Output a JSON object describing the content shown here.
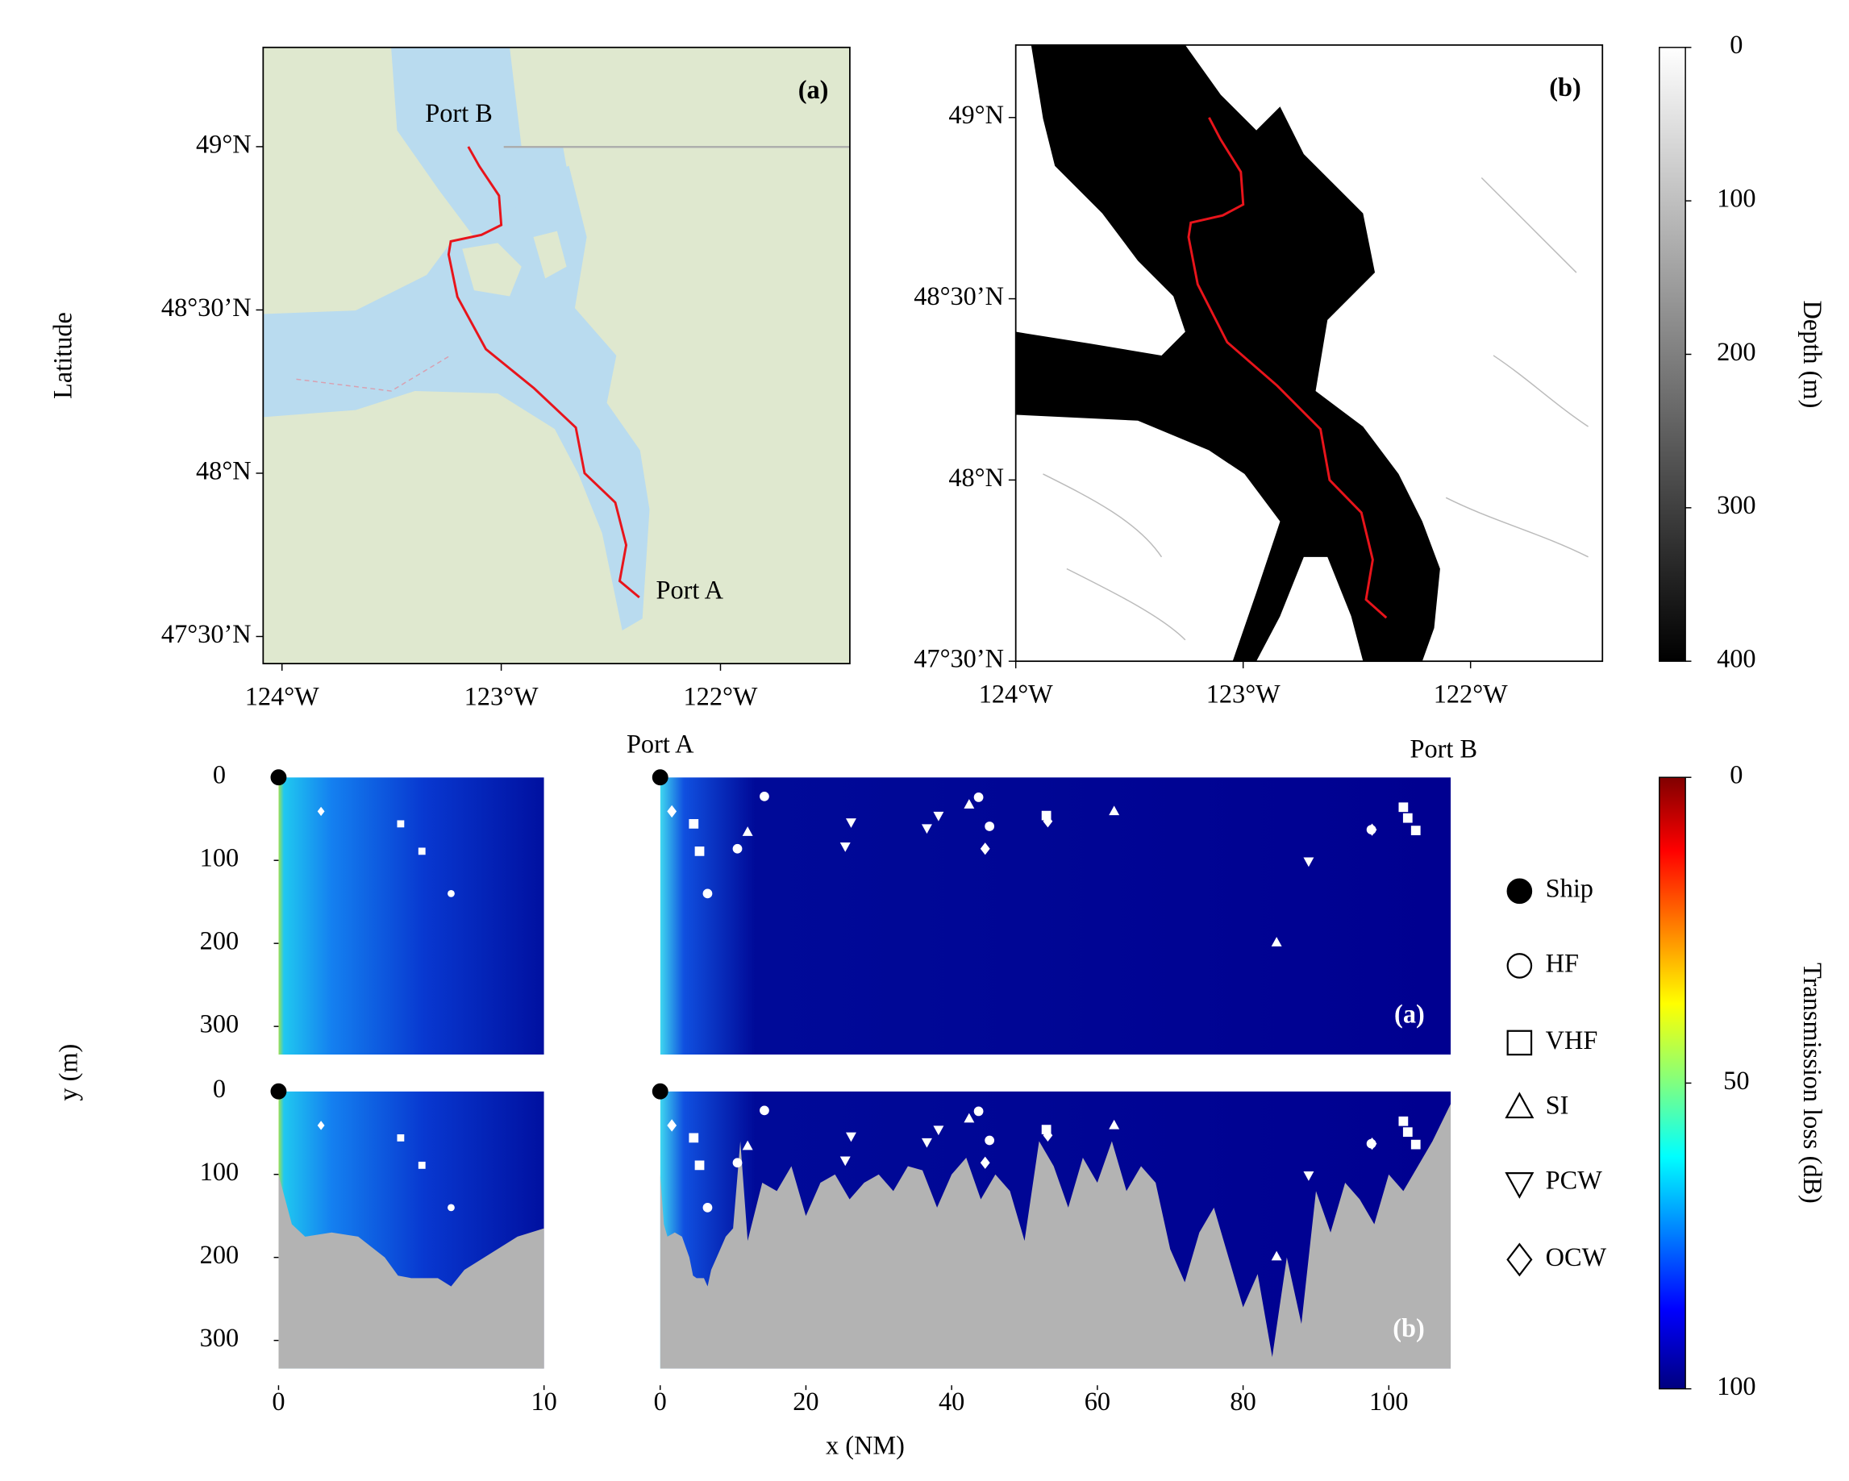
{
  "chart_data": [
    {
      "type": "map",
      "label": "(a)",
      "ylabel": "Latitude",
      "xlim": [
        -124.086,
        -121.41
      ],
      "ylim": [
        47.417,
        49.304
      ],
      "xticks": [
        {
          "value": -124,
          "label": "124°W"
        },
        {
          "value": -123,
          "label": "123°W"
        },
        {
          "value": -122,
          "label": "122°W"
        }
      ],
      "yticks": [
        {
          "value": 47.5,
          "label": "47°30’N"
        },
        {
          "value": 48,
          "label": "48°N"
        },
        {
          "value": 48.5,
          "label": "48°30’N"
        },
        {
          "value": 49,
          "label": "49°N"
        }
      ],
      "route": {
        "color": "#e8141b",
        "x": [
          -123.15,
          -123.1,
          -123.01,
          -123.0,
          -123.09,
          -123.23,
          -123.24,
          -123.2,
          -123.07,
          -122.85,
          -122.66,
          -122.62,
          -122.48,
          -122.43,
          -122.46,
          -122.37
        ],
        "y": [
          49.0,
          48.94,
          48.85,
          48.76,
          48.73,
          48.71,
          48.67,
          48.54,
          48.38,
          48.26,
          48.14,
          48.0,
          47.91,
          47.78,
          47.67,
          47.62
        ]
      },
      "annotations": [
        "Port B",
        "Port A"
      ]
    },
    {
      "type": "map",
      "label": "(b)",
      "xlim": [
        -124,
        -121.42
      ],
      "ylim": [
        47.5,
        49.2
      ],
      "xticks": [
        {
          "value": -124,
          "label": "124°W"
        },
        {
          "value": -123,
          "label": "123°W"
        },
        {
          "value": -122,
          "label": "122°W"
        }
      ],
      "yticks": [
        {
          "value": 47.5,
          "label": "47°30’N"
        },
        {
          "value": 48,
          "label": "48°N"
        },
        {
          "value": 48.5,
          "label": "48°30’N"
        },
        {
          "value": 49,
          "label": "49°N"
        }
      ],
      "route": {
        "color": "#e8141b",
        "x": [
          -123.15,
          -123.1,
          -123.01,
          -123.0,
          -123.09,
          -123.23,
          -123.24,
          -123.2,
          -123.07,
          -122.85,
          -122.66,
          -122.62,
          -122.48,
          -122.43,
          -122.46,
          -122.37
        ],
        "y": [
          49.0,
          48.94,
          48.85,
          48.76,
          48.73,
          48.71,
          48.67,
          48.54,
          48.38,
          48.26,
          48.14,
          48.0,
          47.91,
          47.78,
          47.67,
          47.62
        ]
      },
      "colorbar": {
        "label": "Depth (m)",
        "lim": [
          0,
          400
        ],
        "ticks": [
          0,
          100,
          200,
          300,
          400
        ]
      }
    },
    {
      "type": "transect",
      "xlabel": "x (NM)",
      "ylabel": "y (m)",
      "annotations": [
        "Port A",
        "Port B"
      ],
      "ylim": [
        0,
        334
      ],
      "yticks": [
        0,
        100,
        200,
        300
      ],
      "panels": [
        {
          "xlim": [
            0,
            10
          ],
          "xticks": [
            0,
            10
          ]
        },
        {
          "xlim": [
            0,
            108.5
          ],
          "xticks": [
            0,
            20,
            40,
            60,
            80,
            100
          ]
        }
      ],
      "rows": [
        {
          "label": "(a)"
        },
        {
          "label": "(b)",
          "bathymetry": {
            "x": [
              0,
              0.5,
              1,
              2,
              3,
              4,
              4.5,
              5,
              6,
              6.5,
              7,
              8,
              9,
              10,
              11,
              12,
              14,
              16,
              18,
              20,
              22,
              24,
              26,
              28,
              30,
              32,
              34,
              36,
              38,
              40,
              42,
              44,
              46,
              48,
              50,
              52,
              54,
              56,
              58,
              60,
              62,
              64,
              66,
              68,
              70,
              72,
              74,
              76,
              78,
              80,
              82,
              84,
              86,
              88,
              90,
              92,
              94,
              96,
              98,
              100,
              102,
              104,
              106,
              108.5
            ],
            "depth": [
              100,
              160,
              175,
              170,
              175,
              200,
              222,
              225,
              225,
              235,
              215,
              195,
              175,
              165,
              60,
              180,
              110,
              120,
              90,
              150,
              110,
              100,
              130,
              110,
              100,
              120,
              90,
              95,
              140,
              100,
              80,
              130,
              100,
              120,
              180,
              60,
              90,
              140,
              80,
              110,
              60,
              120,
              90,
              110,
              190,
              230,
              170,
              140,
              200,
              260,
              220,
              320,
              200,
              280,
              120,
              170,
              110,
              130,
              160,
              100,
              120,
              90,
              60,
              15
            ]
          }
        }
      ],
      "series": [
        {
          "name": "Ship",
          "marker": "circle-filled",
          "x": [
            0
          ],
          "y": [
            0
          ]
        },
        {
          "name": "HF",
          "marker": "circle",
          "x": [
            14.3,
            10.6,
            6.5,
            43.7,
            45.2,
            97.6
          ],
          "y": [
            23,
            86,
            140,
            24,
            59,
            63
          ]
        },
        {
          "name": "VHF",
          "marker": "square",
          "x": [
            4.6,
            5.4,
            53,
            102,
            102.6,
            103.7
          ],
          "y": [
            56,
            89,
            46,
            36,
            49,
            64
          ]
        },
        {
          "name": "SI",
          "marker": "triangle-up",
          "x": [
            12,
            42.4,
            62.3,
            84.6
          ],
          "y": [
            66,
            33,
            41,
            199
          ]
        },
        {
          "name": "PCW",
          "marker": "triangle-down",
          "x": [
            26.2,
            25.4,
            36.6,
            38.2,
            89
          ],
          "y": [
            54,
            83,
            61,
            46,
            101
          ]
        },
        {
          "name": "OCW",
          "marker": "diamond",
          "x": [
            1.6,
            44.6,
            53.2,
            97.7
          ],
          "y": [
            41,
            86,
            53,
            63
          ]
        }
      ],
      "colorbar": {
        "label": "Transmission loss (dB)",
        "lim": [
          0,
          100
        ],
        "ticks": [
          0,
          50,
          100
        ]
      }
    }
  ]
}
